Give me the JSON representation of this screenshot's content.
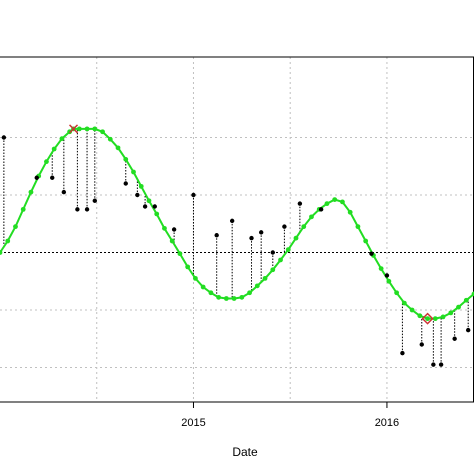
{
  "chart_data": {
    "type": "line",
    "title": "",
    "xlabel": "Date",
    "ylabel": "",
    "x_tick_labels": [
      "2015",
      "2016"
    ],
    "grid": true,
    "legend": "none",
    "x_axis": {
      "unit": "year",
      "range": [
        2014.0,
        2016.45
      ],
      "ticks": [
        {
          "x": 2014.5,
          "label": "",
          "major": false
        },
        {
          "x": 2015.0,
          "label": "2015",
          "major": true
        },
        {
          "x": 2015.5,
          "label": "",
          "major": false
        },
        {
          "x": 2016.0,
          "label": "2016",
          "major": true
        }
      ]
    },
    "y_axis": {
      "range": [
        -2.6,
        3.4
      ],
      "gridlines": [
        -2,
        -1,
        1,
        2
      ],
      "reference_line": 0
    },
    "colors": {
      "fitted": "#22dd22",
      "observed": "#000000",
      "residual": "#000000",
      "grid": "#c0c0c0",
      "max_marker": "#cc3333",
      "min_marker": "#cc3333",
      "axis": "#000000"
    },
    "series": [
      {
        "kind": "fitted",
        "style": "green line with dots",
        "points": [
          [
            2014.0,
            0.0
          ],
          [
            2014.04,
            0.2
          ],
          [
            2014.08,
            0.45
          ],
          [
            2014.12,
            0.75
          ],
          [
            2014.16,
            1.05
          ],
          [
            2014.2,
            1.33
          ],
          [
            2014.24,
            1.58
          ],
          [
            2014.28,
            1.8
          ],
          [
            2014.32,
            1.98
          ],
          [
            2014.36,
            2.1
          ],
          [
            2014.38,
            2.15
          ],
          [
            2014.41,
            2.15
          ],
          [
            2014.45,
            2.15
          ],
          [
            2014.49,
            2.15
          ],
          [
            2014.53,
            2.1
          ],
          [
            2014.57,
            1.97
          ],
          [
            2014.61,
            1.82
          ],
          [
            2014.65,
            1.62
          ],
          [
            2014.69,
            1.4
          ],
          [
            2014.73,
            1.15
          ],
          [
            2014.77,
            0.9
          ],
          [
            2014.81,
            0.67
          ],
          [
            2014.85,
            0.42
          ],
          [
            2014.89,
            0.2
          ],
          [
            2014.93,
            -0.02
          ],
          [
            2014.97,
            -0.25
          ],
          [
            2015.01,
            -0.45
          ],
          [
            2015.05,
            -0.6
          ],
          [
            2015.09,
            -0.7
          ],
          [
            2015.13,
            -0.78
          ],
          [
            2015.17,
            -0.8
          ],
          [
            2015.21,
            -0.8
          ],
          [
            2015.25,
            -0.78
          ],
          [
            2015.29,
            -0.7
          ],
          [
            2015.33,
            -0.58
          ],
          [
            2015.37,
            -0.45
          ],
          [
            2015.41,
            -0.3
          ],
          [
            2015.45,
            -0.13
          ],
          [
            2015.49,
            0.05
          ],
          [
            2015.53,
            0.25
          ],
          [
            2015.57,
            0.45
          ],
          [
            2015.61,
            0.62
          ],
          [
            2015.65,
            0.75
          ],
          [
            2015.69,
            0.85
          ],
          [
            2015.73,
            0.92
          ],
          [
            2015.77,
            0.88
          ],
          [
            2015.81,
            0.7
          ],
          [
            2015.85,
            0.45
          ],
          [
            2015.89,
            0.2
          ],
          [
            2015.93,
            -0.05
          ],
          [
            2015.97,
            -0.28
          ],
          [
            2016.01,
            -0.5
          ],
          [
            2016.05,
            -0.7
          ],
          [
            2016.09,
            -0.88
          ],
          [
            2016.13,
            -1.0
          ],
          [
            2016.17,
            -1.1
          ],
          [
            2016.21,
            -1.15
          ],
          [
            2016.25,
            -1.15
          ],
          [
            2016.29,
            -1.12
          ],
          [
            2016.33,
            -1.05
          ],
          [
            2016.37,
            -0.95
          ],
          [
            2016.41,
            -0.83
          ],
          [
            2016.45,
            -0.72
          ]
        ]
      },
      {
        "kind": "observed",
        "style": "black points with dotted residual segments to fitted line",
        "points": [
          [
            2014.02,
            2.0
          ],
          [
            2014.19,
            1.3
          ],
          [
            2014.27,
            1.3
          ],
          [
            2014.33,
            1.05
          ],
          [
            2014.4,
            0.75
          ],
          [
            2014.45,
            0.75
          ],
          [
            2014.49,
            0.9
          ],
          [
            2014.65,
            1.2
          ],
          [
            2014.71,
            1.0
          ],
          [
            2014.75,
            0.8
          ],
          [
            2014.8,
            0.8
          ],
          [
            2014.9,
            0.4
          ],
          [
            2015.0,
            1.0
          ],
          [
            2015.12,
            0.3
          ],
          [
            2015.2,
            0.55
          ],
          [
            2015.3,
            0.25
          ],
          [
            2015.35,
            0.35
          ],
          [
            2015.41,
            0.0
          ],
          [
            2015.47,
            0.45
          ],
          [
            2015.55,
            0.85
          ],
          [
            2015.66,
            0.75
          ],
          [
            2015.92,
            -0.02
          ],
          [
            2016.0,
            -0.4
          ],
          [
            2016.08,
            -1.75
          ],
          [
            2016.18,
            -1.6
          ],
          [
            2016.24,
            -1.95
          ],
          [
            2016.28,
            -1.95
          ],
          [
            2016.35,
            -1.5
          ],
          [
            2016.42,
            -1.35
          ]
        ]
      }
    ],
    "annotations": [
      {
        "type": "maximum",
        "marker": "x",
        "x": 2014.38,
        "y": 2.15
      },
      {
        "type": "minimum",
        "marker": "diamond",
        "x": 2016.21,
        "y": -1.15
      }
    ]
  }
}
